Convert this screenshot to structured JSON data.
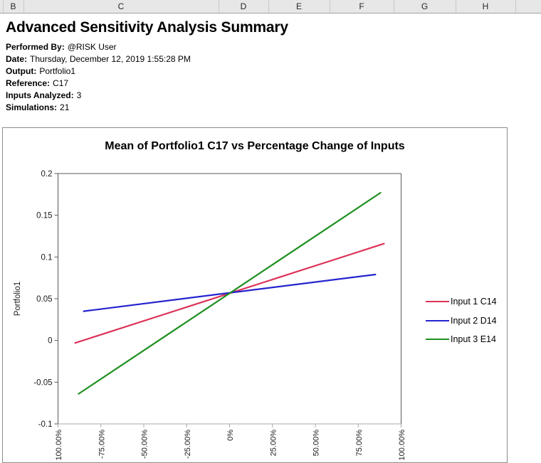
{
  "sheet": {
    "columns": [
      "B",
      "C",
      "D",
      "E",
      "F",
      "G",
      "H"
    ]
  },
  "report": {
    "title": "Advanced Sensitivity Analysis Summary",
    "fields": [
      {
        "label": "Performed By:",
        "value": "@RISK User"
      },
      {
        "label": "Date:",
        "value": "Thursday, December 12, 2019 1:55:28 PM"
      },
      {
        "label": "Output:",
        "value": "Portfolio1"
      },
      {
        "label": "Reference:",
        "value": "C17"
      },
      {
        "label": "Inputs Analyzed:",
        "value": "3"
      },
      {
        "label": "Simulations:",
        "value": "21"
      }
    ]
  },
  "chart_data": {
    "type": "line",
    "title": "Mean of Portfolio1 C17 vs Percentage Change of Inputs",
    "xlabel": "",
    "ylabel": "Portfolio1",
    "xlim": [
      -100,
      100
    ],
    "ylim": [
      -0.1,
      0.2
    ],
    "grid": false,
    "legend_position": "right",
    "x_tick_values": [
      -100,
      -75,
      -50,
      -25,
      0,
      25,
      50,
      75,
      100
    ],
    "x_tick_labels": [
      "-100.00%",
      "-75.00%",
      "-50.00%",
      "-25.00%",
      "0%",
      "25.00%",
      "50.00%",
      "75.00%",
      "100.00%"
    ],
    "y_ticks": [
      0.2,
      0.15,
      0.1,
      0.05,
      0,
      -0.05,
      -0.1
    ],
    "series": [
      {
        "name": "Input 1 C14",
        "color": "#dc3359",
        "x": [
          -90,
          90
        ],
        "y": [
          -0.003,
          0.116
        ]
      },
      {
        "name": "Input 2 D14",
        "color": "#2424ce",
        "x": [
          -85,
          85
        ],
        "y": [
          0.035,
          0.079
        ]
      },
      {
        "name": "Input 3 E14",
        "color": "#1f8f1f",
        "x": [
          -88,
          88
        ],
        "y": [
          -0.064,
          0.177
        ]
      }
    ],
    "crossing_point": {
      "x_pct": 0,
      "y": 0.057
    }
  }
}
